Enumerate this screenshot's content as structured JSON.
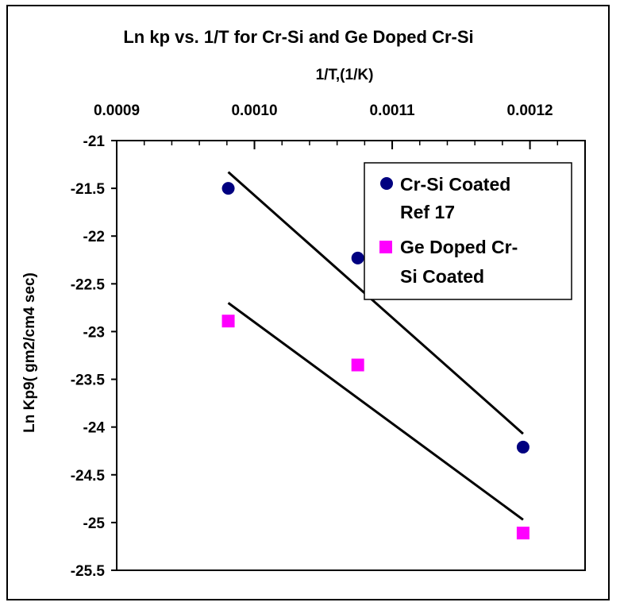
{
  "chart_data": {
    "type": "scatter",
    "title": "Ln kp vs. 1/T for Cr-Si and Ge Doped Cr-Si",
    "xlabel": "1/T,(1/K)",
    "ylabel": "Ln Kp9( gm2/cm4 sec)",
    "x_axis_position": "top",
    "xlim": [
      0.0009,
      0.00124
    ],
    "ylim": [
      -25.5,
      -21
    ],
    "x_ticks": [
      0.0009,
      0.001,
      0.0011,
      0.0012
    ],
    "x_tick_labels": [
      "0.0009",
      "0.0010",
      "0.0011",
      "0.0012"
    ],
    "y_ticks": [
      -21,
      -21.5,
      -22,
      -22.5,
      -23,
      -23.5,
      -24,
      -24.5,
      -25,
      -25.5
    ],
    "y_tick_labels": [
      "-21",
      "-21.5",
      "-22",
      "-22.5",
      "-23",
      "-23.5",
      "-24",
      "-24.5",
      "-25",
      "-25.5"
    ],
    "grid": false,
    "legend_position": "top-right",
    "series": [
      {
        "name": "Cr-Si Coated Ref 17",
        "legend_lines": [
          "Cr-Si Coated",
          "Ref 17"
        ],
        "marker": "circle",
        "color": "#000080",
        "x": [
          0.000981,
          0.001075,
          0.001195
        ],
        "y": [
          -21.5,
          -22.23,
          -24.21
        ],
        "trendline": {
          "x": [
            0.000981,
            0.001195
          ],
          "y": [
            -21.33,
            -24.07
          ]
        }
      },
      {
        "name": "Ge Doped Cr-Si Coated",
        "legend_lines": [
          "Ge Doped Cr-",
          "Si Coated"
        ],
        "marker": "square",
        "color": "#ff00ff",
        "x": [
          0.000981,
          0.001075,
          0.001195
        ],
        "y": [
          -22.89,
          -23.35,
          -25.11
        ],
        "trendline": {
          "x": [
            0.000981,
            0.001195
          ],
          "y": [
            -22.7,
            -24.97
          ]
        }
      }
    ]
  }
}
